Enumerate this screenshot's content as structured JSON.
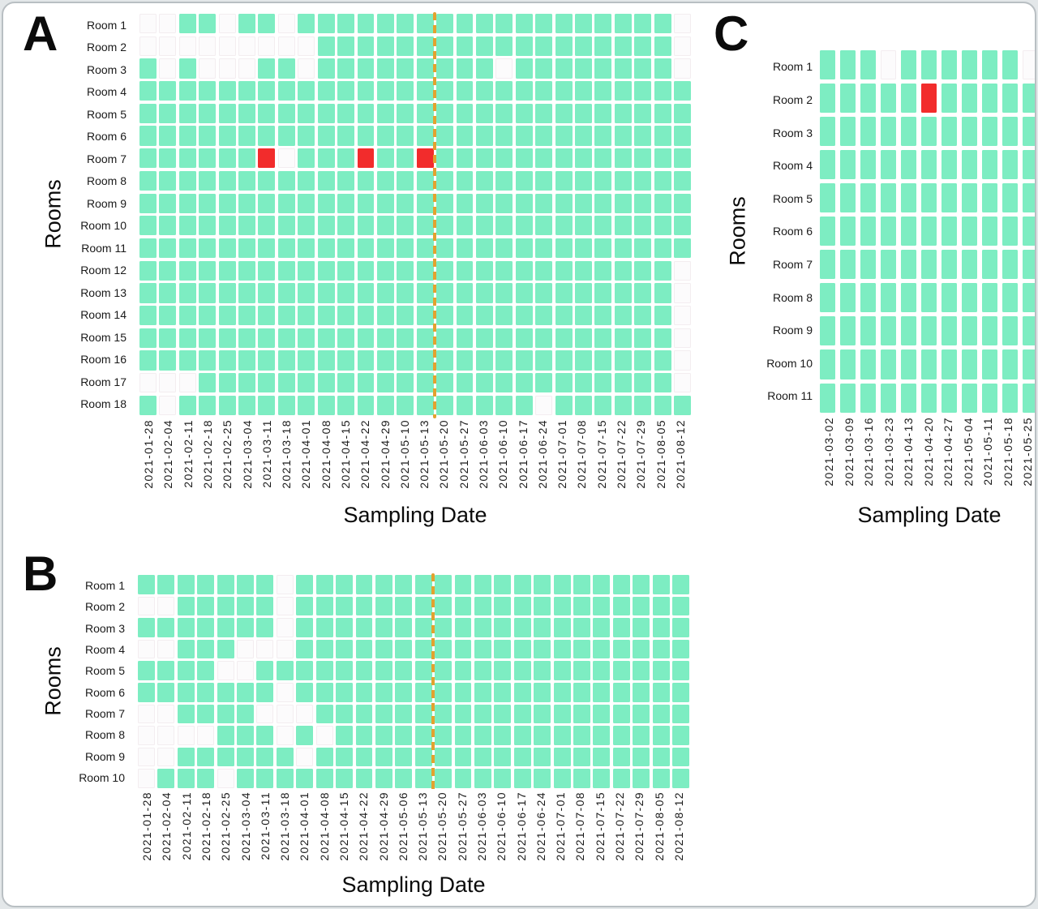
{
  "colors": {
    "cell_green": "#7DEDC2",
    "cell_red": "#F22C2C",
    "cell_missing": "#FCFBFC",
    "dashed_line": "#E2A230",
    "text": "#111111"
  },
  "chart_data": [
    {
      "type": "heatmap",
      "panel": "A",
      "panel_label": "A",
      "xlabel": "Sampling Date",
      "ylabel": "Rooms",
      "rows": [
        "Room 1",
        "Room 2",
        "Room 3",
        "Room 4",
        "Room 5",
        "Room 6",
        "Room 7",
        "Room 8",
        "Room 9",
        "Room 10",
        "Room 11",
        "Room 12",
        "Room 13",
        "Room 14",
        "Room 15",
        "Room 16",
        "Room 17",
        "Room 18"
      ],
      "columns": [
        "2021-01-28",
        "2021-02-04",
        "2021-02-11",
        "2021-02-18",
        "2021-02-25",
        "2021-03-04",
        "2021-03-11",
        "2021-03-18",
        "2021-04-01",
        "2021-04-08",
        "2021-04-15",
        "2021-04-22",
        "2021-04-29",
        "2021-05-10",
        "2021-05-13",
        "2021-05-20",
        "2021-05-27",
        "2021-06-03",
        "2021-06-10",
        "2021-06-17",
        "2021-06-24",
        "2021-07-01",
        "2021-07-08",
        "2021-07-15",
        "2021-07-22",
        "2021-07-29",
        "2021-08-05",
        "2021-08-12"
      ],
      "cell_legend": {
        "g": "green",
        "r": "red",
        "w": "blank"
      },
      "cells": [
        "wwggwggwgggggggggggggggggggw",
        "wwwwwwwwwggggggggggggggggggw",
        "gwgwwwggwgggggggggwggggggggw",
        "gggggggggggggggggggggggggggg",
        "gggggggggggggggggggggggggggg",
        "gggggggggggggggggggggggggggg",
        "ggggggrwgggrggrggggggggggggg",
        "gggggggggggggggggggggggggggg",
        "gggggggggggggggggggggggggggg",
        "gggggggggggggggggggggggggggg",
        "gggggggggggggggggggggggggggg",
        "gggggggggggggggggggggggggggw",
        "gggggggggggggggggggggggggggw",
        "gggggggggggggggggggggggggggw",
        "gggggggggggggggggggggggggggw",
        "gggggggggggggggggggggggggggw",
        "wwwggggggggggggggggggggggggw",
        "gwggggggggggggggggggwggggggg"
      ],
      "dashed_line_after": "2021-05-13"
    },
    {
      "type": "heatmap",
      "panel": "B",
      "panel_label": "B",
      "xlabel": "Sampling Date",
      "ylabel": "Rooms",
      "rows": [
        "Room 1",
        "Room 2",
        "Room 3",
        "Room 4",
        "Room 5",
        "Room 6",
        "Room 7",
        "Room 8",
        "Room 9",
        "Room 10"
      ],
      "columns": [
        "2021-01-28",
        "2021-02-04",
        "2021-02-11",
        "2021-02-18",
        "2021-02-25",
        "2021-03-04",
        "2021-03-11",
        "2021-03-18",
        "2021-04-01",
        "2021-04-08",
        "2021-04-15",
        "2021-04-22",
        "2021-04-29",
        "2021-05-06",
        "2021-05-13",
        "2021-05-20",
        "2021-05-27",
        "2021-06-03",
        "2021-06-10",
        "2021-06-17",
        "2021-06-24",
        "2021-07-01",
        "2021-07-08",
        "2021-07-15",
        "2021-07-22",
        "2021-07-29",
        "2021-08-05",
        "2021-08-12"
      ],
      "cell_legend": {
        "g": "green",
        "r": "red",
        "w": "blank"
      },
      "cells": [
        "gggggggwgggggggggggggggggggg",
        "wwgggggwgggggggggggggggggggg",
        "gggggggwgggggggggggggggggggg",
        "wwgggwwwgggggggggggggggggggg",
        "ggggwwgggggggggggggggggggggg",
        "gggggggwgggggggggggggggggggg",
        "wwggggwwwggggggggggggggggggg",
        "wwwwgggwgwgggggggggggggggggg",
        "wwggggggwggggggggggggggggggg",
        "wgggwggggggggggggggggggggggg"
      ],
      "dashed_line_after": "2021-05-13"
    },
    {
      "type": "heatmap",
      "panel": "C",
      "panel_label": "C",
      "xlabel": "Sampling Date",
      "ylabel": "Rooms",
      "rows": [
        "Room 1",
        "Room 2",
        "Room 3",
        "Room 4",
        "Room 5",
        "Room 6",
        "Room 7",
        "Room 8",
        "Room 9",
        "Room 10",
        "Room 11"
      ],
      "columns": [
        "2021-03-02",
        "2021-03-09",
        "2021-03-16",
        "2021-03-23",
        "2021-04-13",
        "2021-04-20",
        "2021-04-27",
        "2021-05-04",
        "2021-05-11",
        "2021-05-18",
        "2021-05-25"
      ],
      "cell_legend": {
        "g": "green",
        "r": "red",
        "w": "blank"
      },
      "cells": [
        "gggwggggggw",
        "gggggrggggg",
        "ggggggggggg",
        "ggggggggggg",
        "ggggggggggg",
        "ggggggggggg",
        "ggggggggggg",
        "ggggggggggg",
        "ggggggggggg",
        "ggggggggggg",
        "ggggggggggg"
      ],
      "dashed_line_after": null
    }
  ]
}
